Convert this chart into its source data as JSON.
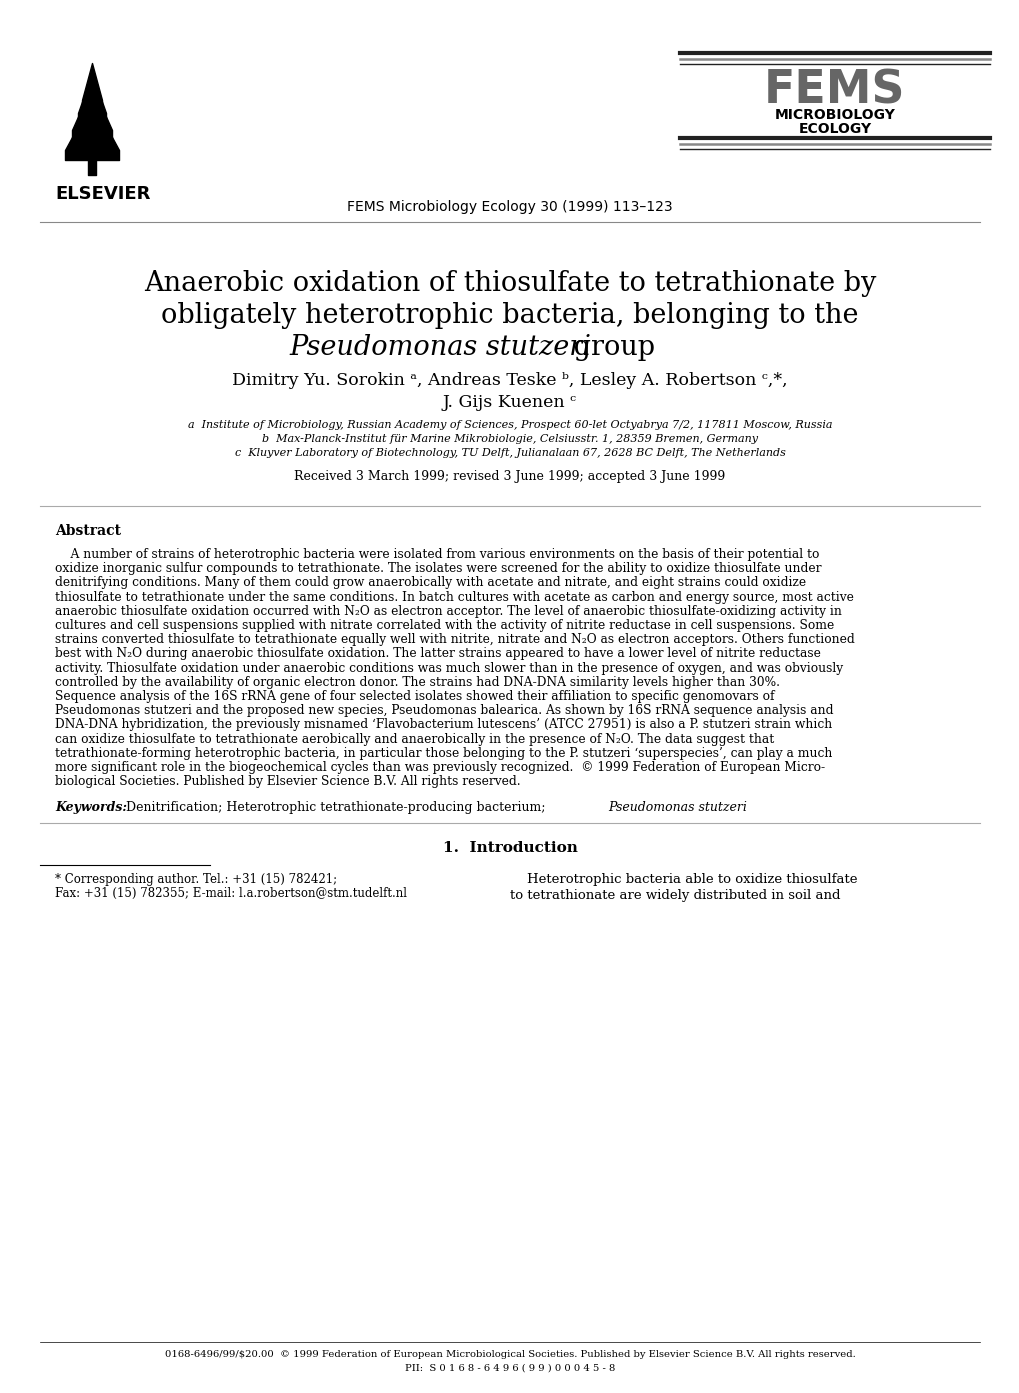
{
  "bg_color": "#ffffff",
  "journal_line": "FEMS Microbiology Ecology 30 (1999) 113–123",
  "elsevier_text": "ELSEVIER",
  "title_line1": "Anaerobic oxidation of thiosulfate to tetrathionate by",
  "title_line2": "obligately heterotrophic bacteria, belonging to the",
  "title_line3_italic": "Pseudomonas stutzeri",
  "title_line3_normal": " group",
  "authors_line1": "Dimitry Yu. Sorokin a, Andreas Teske b, Lesley A. Robertson c,*,",
  "authors_line2": "J. Gijs Kuenen c",
  "affil_a": "a  Institute of Microbiology, Russian Academy of Sciences, Prospect 60-let Octyabrya 7/2, 117811 Moscow, Russia",
  "affil_b": "b  Max-Planck-Institut für Marine Mikrobiologie, Celsiusstr. 1, 28359 Bremen, Germany",
  "affil_c": "c  Kluyver Laboratory of Biotechnology, TU Delft, Julianalaan 67, 2628 BC Delft, The Netherlands",
  "received": "Received 3 March 1999; revised 3 June 1999; accepted 3 June 1999",
  "abstract_label": "Abstract",
  "abstract_lines": [
    "    A number of strains of heterotrophic bacteria were isolated from various environments on the basis of their potential to",
    "oxidize inorganic sulfur compounds to tetrathionate. The isolates were screened for the ability to oxidize thiosulfate under",
    "denitrifying conditions. Many of them could grow anaerobically with acetate and nitrate, and eight strains could oxidize",
    "thiosulfate to tetrathionate under the same conditions. In batch cultures with acetate as carbon and energy source, most active",
    "anaerobic thiosulfate oxidation occurred with N₂O as electron acceptor. The level of anaerobic thiosulfate-oxidizing activity in",
    "cultures and cell suspensions supplied with nitrate correlated with the activity of nitrite reductase in cell suspensions. Some",
    "strains converted thiosulfate to tetrathionate equally well with nitrite, nitrate and N₂O as electron acceptors. Others functioned",
    "best with N₂O during anaerobic thiosulfate oxidation. The latter strains appeared to have a lower level of nitrite reductase",
    "activity. Thiosulfate oxidation under anaerobic conditions was much slower than in the presence of oxygen, and was obviously",
    "controlled by the availability of organic electron donor. The strains had DNA-DNA similarity levels higher than 30%.",
    "Sequence analysis of the 16S rRNA gene of four selected isolates showed their affiliation to specific genomovars of",
    "Pseudomonas stutzeri and the proposed new species, Pseudomonas balearica. As shown by 16S rRNA sequence analysis and",
    "DNA-DNA hybridization, the previously misnamed ‘Flavobacterium lutescens’ (ATCC 27951) is also a P. stutzeri strain which",
    "can oxidize thiosulfate to tetrathionate aerobically and anaerobically in the presence of N₂O. The data suggest that",
    "tetrathionate-forming heterotrophic bacteria, in particular those belonging to the P. stutzeri ‘superspecies’, can play a much",
    "more significant role in the biogeochemical cycles than was previously recognized.  © 1999 Federation of European Micro-",
    "biological Societies. Published by Elsevier Science B.V. All rights reserved."
  ],
  "keywords_label": "Keywords:",
  "keywords_body": "  Denitrification; Heterotrophic tetrathionate-producing bacterium; ",
  "keywords_italic": "Pseudomonas stutzeri",
  "section_title": "1.  Introduction",
  "intro_left_line1": "* Corresponding author. Tel.: +31 (15) 782421;",
  "intro_left_line2": "Fax: +31 (15) 782355; E-mail: l.a.robertson@stm.tudelft.nl",
  "intro_right_line1": "    Heterotrophic bacteria able to oxidize thiosulfate",
  "intro_right_line2": "to tetrathionate are widely distributed in soil and",
  "footer_line1": "0168-6496/99/$20.00  © 1999 Federation of European Microbiological Societies. Published by Elsevier Science B.V. All rights reserved.",
  "footer_line2": "PII:  S 0 1 6 8 - 6 4 9 6 ( 9 9 ) 0 0 0 4 5 - 8",
  "fems_lines_color_top": "#333333",
  "fems_lines_color_mid": "#888888",
  "fems_text": "FEMS",
  "microbiology": "MICROBIOLOGY",
  "ecology": "ECOLOGY"
}
